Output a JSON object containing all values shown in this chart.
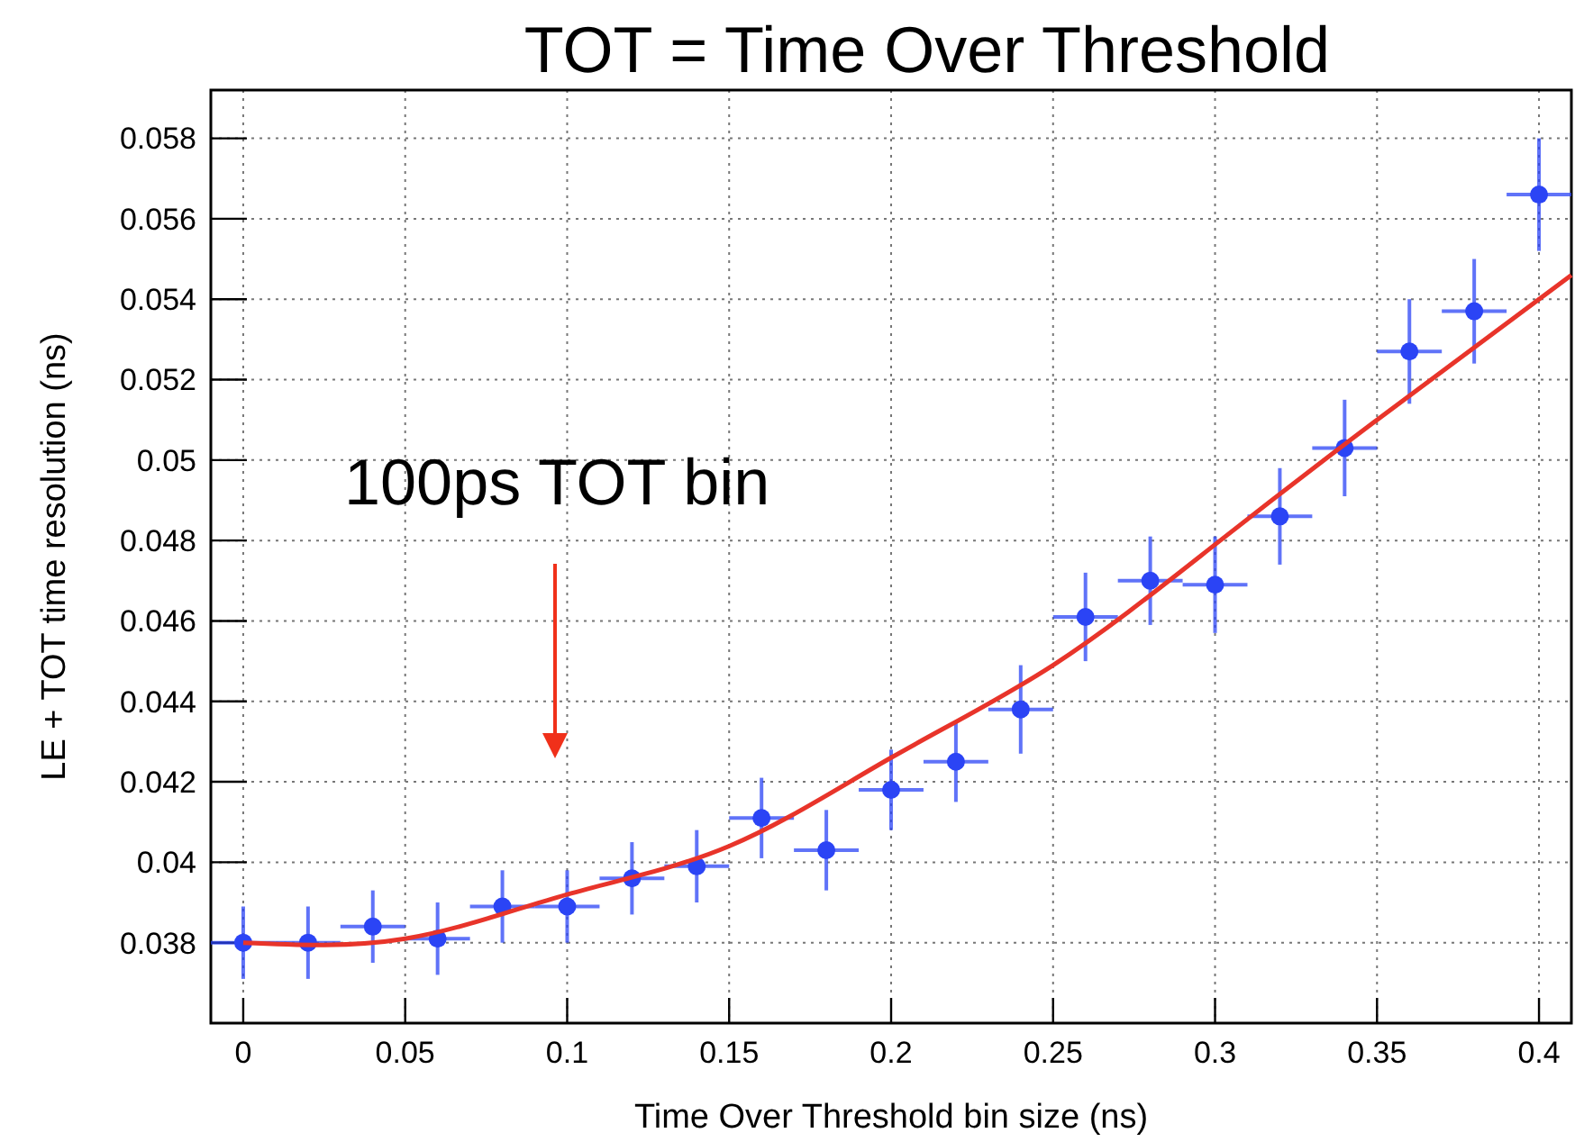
{
  "chart_data": {
    "type": "scatter",
    "title": "TOT = Time Over Threshold",
    "xlabel": "Time Over Threshold bin size (ns)",
    "ylabel": "LE + TOT time resolution (ns)",
    "annotations": [
      "100ps TOT bin"
    ],
    "x": [
      0,
      0.02,
      0.04,
      0.06,
      0.08,
      0.1,
      0.12,
      0.14,
      0.16,
      0.18,
      0.2,
      0.22,
      0.24,
      0.26,
      0.28,
      0.3,
      0.32,
      0.34,
      0.36,
      0.38,
      0.4
    ],
    "series": [
      {
        "color": "#2b44f5",
        "marker": "circle",
        "values": [
          0.038,
          0.038,
          0.0384,
          0.0381,
          0.0389,
          0.0389,
          0.0396,
          0.0399,
          0.0411,
          0.0403,
          0.0418,
          0.0425,
          0.0438,
          0.0461,
          0.047,
          0.0469,
          0.0486,
          0.0503,
          0.0527,
          0.0537,
          0.0566
        ],
        "errors": [
          0.0009,
          0.0009,
          0.0009,
          0.0009,
          0.0009,
          0.0009,
          0.0009,
          0.0009,
          0.001,
          0.001,
          0.001,
          0.001,
          0.0011,
          0.0011,
          0.0011,
          0.0012,
          0.0012,
          0.0012,
          0.0013,
          0.0013,
          0.0014
        ],
        "xerrors": [
          0.01,
          0.01,
          0.01,
          0.01,
          0.01,
          0.01,
          0.01,
          0.01,
          0.01,
          0.01,
          0.01,
          0.01,
          0.01,
          0.01,
          0.01,
          0.01,
          0.01,
          0.01,
          0.01,
          0.01,
          0.01
        ]
      },
      {
        "type": "line",
        "color": "#e8342a",
        "x": [
          0,
          0.05,
          0.1,
          0.15,
          0.2,
          0.25,
          0.3,
          0.35,
          0.41
        ],
        "values": [
          0.038,
          0.0381,
          0.0392,
          0.0404,
          0.0426,
          0.0449,
          0.0479,
          0.051,
          0.0546
        ]
      }
    ],
    "xlim": [
      -0.01,
      0.41
    ],
    "ylim": [
      0.036,
      0.0592
    ],
    "xticks": [
      0,
      0.05,
      0.1,
      0.15,
      0.2,
      0.25,
      0.3,
      0.35,
      0.4
    ],
    "yticks": [
      0.038,
      0.04,
      0.042,
      0.044,
      0.046,
      0.048,
      0.05,
      0.052,
      0.054,
      0.056,
      0.058
    ],
    "grid": true
  }
}
